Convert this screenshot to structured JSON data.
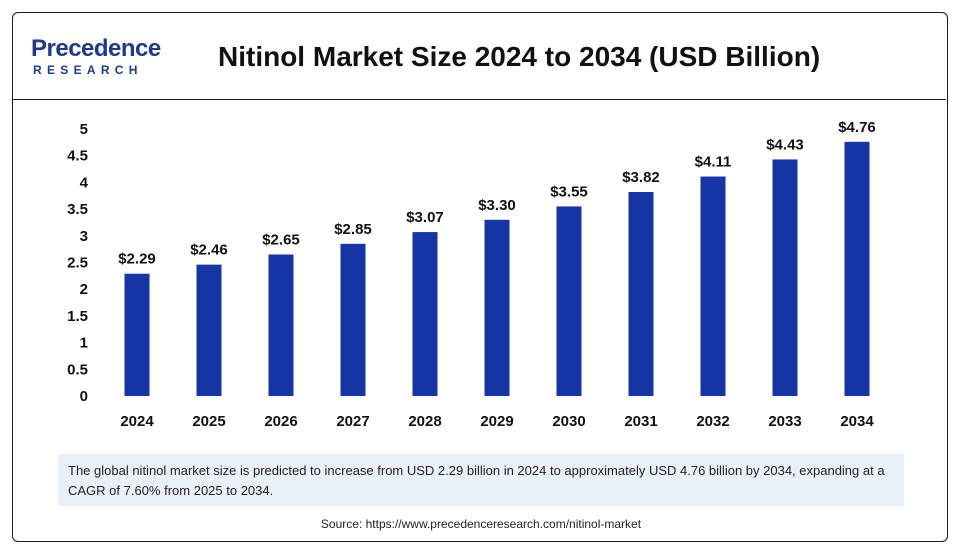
{
  "header": {
    "logo_top": "Precedence",
    "logo_bottom": "RESEARCH",
    "title": "Nitinol Market Size 2024 to 2034 (USD Billion)"
  },
  "colors": {
    "bar": "#1635a6",
    "brand": "#1e3a8a",
    "desc_bg": "#e9f0f9"
  },
  "chart_data": {
    "type": "bar",
    "title": "Nitinol Market Size 2024 to 2034 (USD Billion)",
    "categories": [
      "2024",
      "2025",
      "2026",
      "2027",
      "2028",
      "2029",
      "2030",
      "2031",
      "2032",
      "2033",
      "2034"
    ],
    "values": [
      2.29,
      2.46,
      2.65,
      2.85,
      3.07,
      3.3,
      3.55,
      3.82,
      4.11,
      4.43,
      4.76
    ],
    "data_labels": [
      "$2.29",
      "$2.46",
      "$2.65",
      "$2.85",
      "$3.07",
      "$3.30",
      "$3.55",
      "$3.82",
      "$4.11",
      "$4.43",
      "$4.76"
    ],
    "y_ticks": [
      "0",
      "0.5",
      "1",
      "1.5",
      "2",
      "2.5",
      "3",
      "3.5",
      "4",
      "4.5",
      "5"
    ],
    "ylim": [
      0,
      5
    ],
    "grid": false,
    "legend": "none"
  },
  "description": "The global nitinol market size is predicted to increase from USD 2.29 billion in 2024 to approximately USD 4.76 billion by 2034, expanding at a CAGR of 7.60% from 2025 to 2034.",
  "source": "Source: https://www.precedenceresearch.com/nitinol-market"
}
